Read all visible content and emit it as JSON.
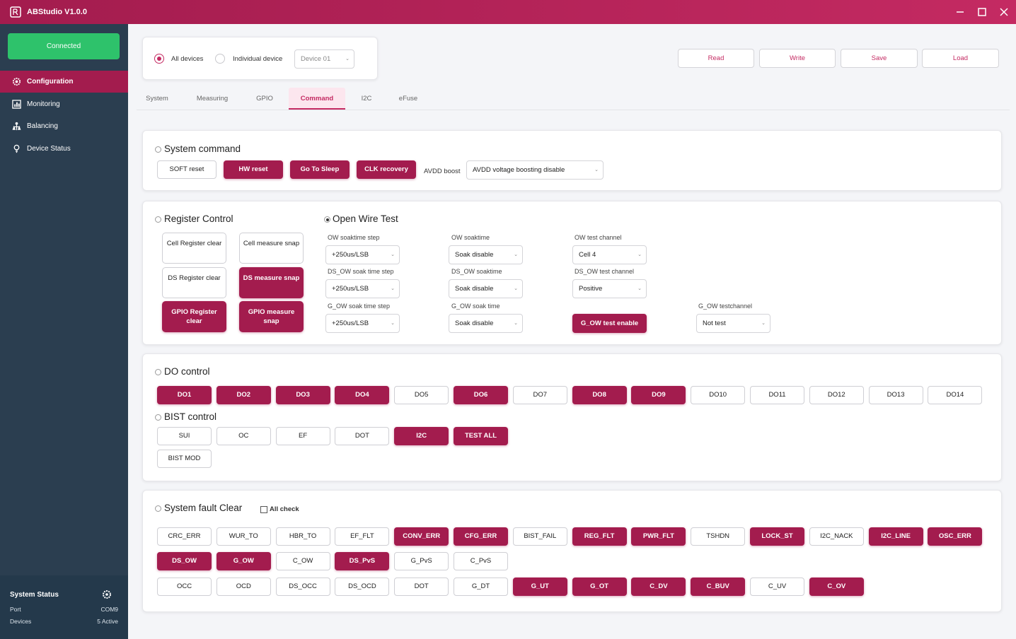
{
  "app": {
    "title": "ABStudio V1.0.0"
  },
  "sidebar": {
    "connected_label": "Connected",
    "items": [
      {
        "label": "Configuration",
        "icon": "gear-icon"
      },
      {
        "label": "Monitoring",
        "icon": "chart-icon"
      },
      {
        "label": "Balancing",
        "icon": "balance-icon"
      },
      {
        "label": "Device Status",
        "icon": "bulb-icon"
      }
    ],
    "status": {
      "title": "System Status",
      "port_label": "Port",
      "port_value": "COM9",
      "devices_label": "Devices",
      "devices_value": "5 Active"
    }
  },
  "device_panel": {
    "all_devices": "All devices",
    "individual_device": "Individual device",
    "device_select": "Device 01"
  },
  "actions": {
    "read": "Read",
    "write": "Write",
    "save": "Save",
    "load": "Load"
  },
  "tabs": [
    "System",
    "Measuring",
    "GPIO",
    "Command",
    "I2C",
    "eFuse"
  ],
  "system_command": {
    "title": "System command",
    "buttons": [
      "SOFT reset",
      "HW reset",
      "Go To Sleep",
      "CLK recovery"
    ],
    "avdd_label": "AVDD boost",
    "avdd_value": "AVDD voltage boosting disable"
  },
  "register_control": {
    "title": "Register Control",
    "buttons": [
      "Cell Register clear",
      "Cell measure snap",
      "DS Register clear",
      "DS measure snap",
      "GPIO Register clear",
      "GPIO measure snap"
    ]
  },
  "open_wire": {
    "title": "Open Wire Test",
    "fields": [
      {
        "label": "OW soaktime step",
        "value": "+250us/LSB"
      },
      {
        "label": "OW soaktime",
        "value": "Soak disable"
      },
      {
        "label": "OW test channel",
        "value": "Cell 4"
      },
      {
        "label": "DS_OW soak time step",
        "value": "+250us/LSB"
      },
      {
        "label": "DS_OW soaktime",
        "value": "Soak disable"
      },
      {
        "label": "DS_OW test channel",
        "value": "Positive"
      },
      {
        "label": "G_OW soak time step",
        "value": "+250us/LSB"
      },
      {
        "label": "G_OW soak time",
        "value": "Soak disable"
      },
      {
        "label": "G_OW testchannel",
        "value": "Not test"
      }
    ],
    "g_ow_button": "G_OW test enable"
  },
  "do_control": {
    "title": "DO control",
    "buttons": [
      "DO1",
      "DO2",
      "DO3",
      "DO4",
      "DO5",
      "DO6",
      "DO7",
      "DO8",
      "DO9",
      "DO10",
      "DO11",
      "DO12",
      "DO13",
      "DO14"
    ]
  },
  "bist_control": {
    "title": "BIST control",
    "buttons": [
      "SUI",
      "OC",
      "EF",
      "DOT",
      "I2C",
      "TEST ALL",
      "BIST MOD"
    ]
  },
  "fault_clear": {
    "title": "System fault Clear",
    "all_check": "All check",
    "row1": [
      "CRC_ERR",
      "WUR_TO",
      "HBR_TO",
      "EF_FLT",
      "CONV_ERR",
      "CFG_ERR",
      "BIST_FAIL",
      "REG_FLT",
      "PWR_FLT",
      "TSHDN",
      "LOCK_ST",
      "I2C_NACK",
      "I2C_LINE",
      "OSC_ERR"
    ],
    "row2": [
      "DS_OW",
      "G_OW",
      "C_OW",
      "DS_PvS",
      "G_PvS",
      "C_PvS"
    ],
    "row3": [
      "OCC",
      "OCD",
      "DS_OCC",
      "DS_OCD",
      "DOT",
      "G_DT",
      "G_UT",
      "G_OT",
      "C_DV",
      "C_BUV",
      "C_UV",
      "C_OV"
    ]
  },
  "colors": {
    "accent": "#a31c4e",
    "sidebar": "#2b3e50",
    "connected": "#2ec26b"
  }
}
